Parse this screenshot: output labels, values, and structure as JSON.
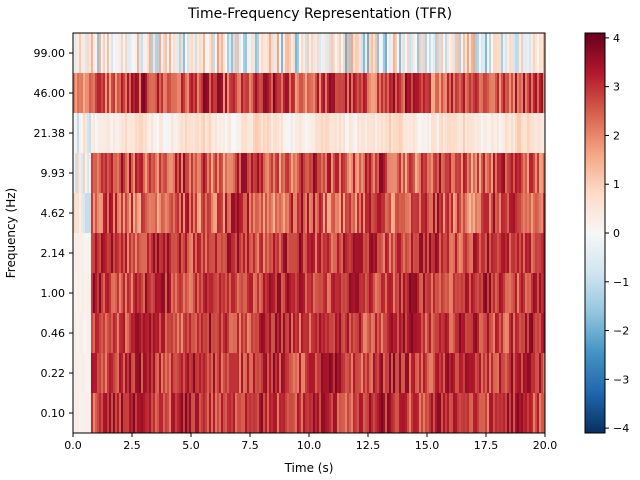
{
  "chart_data": {
    "type": "heatmap",
    "title": "Time-Frequency Representation (TFR)",
    "xlabel": "Time (s)",
    "ylabel": "Frequency (Hz)",
    "xlim": [
      0.0,
      20.0
    ],
    "x_ticks": [
      "0.0",
      "2.5",
      "5.0",
      "7.5",
      "10.0",
      "12.5",
      "15.0",
      "17.5",
      "20.0"
    ],
    "y_rows": [
      "99.00",
      "46.00",
      "21.38",
      "9.93",
      "4.62",
      "2.14",
      "1.00",
      "0.46",
      "0.22",
      "0.10"
    ],
    "colorbar": {
      "colormap": "RdBu_r",
      "vmin": -4.1,
      "vmax": 4.1,
      "ticks": [
        "4",
        "3",
        "2",
        "1",
        "0",
        "−1",
        "−2",
        "−3",
        "−4"
      ],
      "tick_values": [
        4,
        3,
        2,
        1,
        0,
        -1,
        -2,
        -3,
        -4
      ]
    },
    "row_profiles": [
      {
        "freq": "99.00",
        "mean": 0.5,
        "spread": 1.0
      },
      {
        "freq": "46.00",
        "mean": 2.7,
        "spread": 0.9
      },
      {
        "freq": "21.38",
        "mean": 0.5,
        "spread": 0.35
      },
      {
        "freq": "9.93",
        "mean": 2.6,
        "spread": 0.9
      },
      {
        "freq": "4.62",
        "mean": 2.5,
        "spread": 0.9
      },
      {
        "freq": "2.14",
        "mean": 2.9,
        "spread": 0.7
      },
      {
        "freq": "1.00",
        "mean": 2.9,
        "spread": 0.7
      },
      {
        "freq": "0.46",
        "mean": 2.9,
        "spread": 0.7
      },
      {
        "freq": "0.22",
        "mean": 2.9,
        "spread": 0.7
      },
      {
        "freq": "0.10",
        "mean": 2.9,
        "spread": 0.7
      }
    ]
  }
}
